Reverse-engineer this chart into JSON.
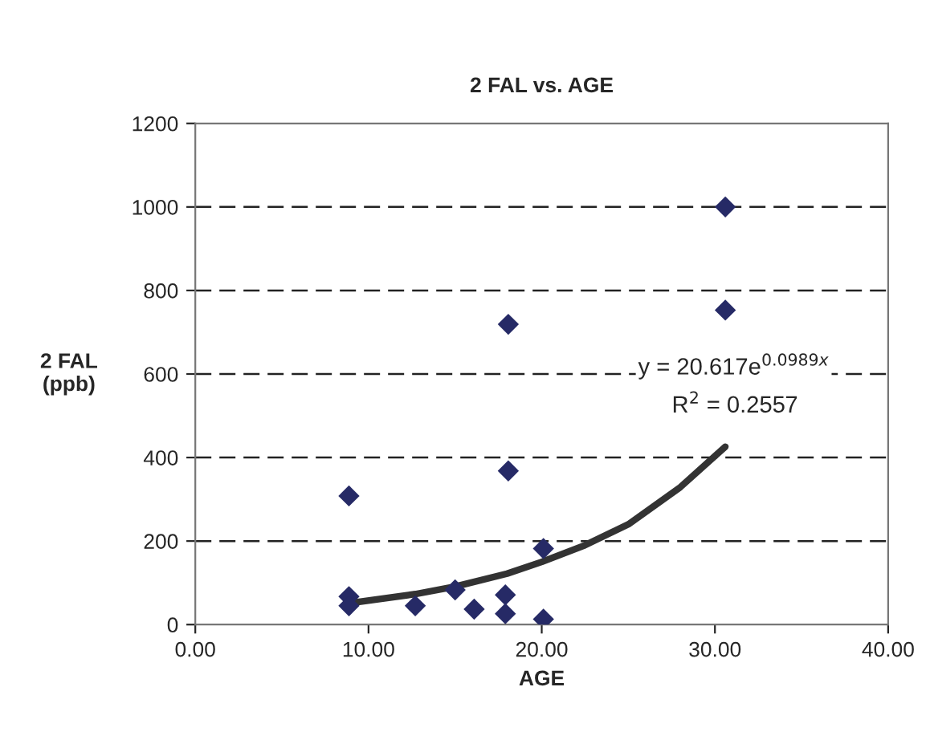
{
  "chart_data": {
    "type": "scatter",
    "title": "2 FAL vs. AGE",
    "xlabel": "AGE",
    "ylabel": "2 FAL\n(ppb)",
    "annotations": [
      "y = 20.617e$^{0.0989x}$",
      "R$^{2}$ = 0.2557"
    ],
    "series": [
      {
        "color": "#262a66",
        "marker": "diamond",
        "x": [
          8.87,
          8.87,
          8.87,
          12.7,
          15.0,
          16.1,
          18.07,
          18.07,
          17.9,
          17.9,
          20.1,
          20.1,
          30.6,
          30.6
        ],
        "values": [
          308,
          67,
          45,
          45,
          83,
          37,
          719,
          368,
          71,
          26,
          182,
          13,
          1000,
          753
        ]
      },
      {
        "type": "line",
        "color": "#333333",
        "marker": "none",
        "line_style": "solid",
        "x": [
          8.87,
          12.7,
          15.0,
          18.0,
          20.0,
          22.5,
          25.0,
          28.0,
          30.6
        ],
        "values": [
          51,
          73,
          91,
          122,
          150,
          190,
          240,
          329,
          426
        ]
      }
    ],
    "xlim": [
      0,
      40
    ],
    "xticks": [
      {
        "value": 0,
        "label": "0.00"
      },
      {
        "value": 10,
        "label": "10.00"
      },
      {
        "value": 20,
        "label": "20.00"
      },
      {
        "value": 30,
        "label": "30.00"
      },
      {
        "value": 40,
        "label": "40.00"
      }
    ],
    "ylim": [
      0,
      1200
    ],
    "yticks": [
      0,
      200,
      400,
      600,
      800,
      1000,
      1200
    ],
    "grid": "y",
    "legend": false
  }
}
